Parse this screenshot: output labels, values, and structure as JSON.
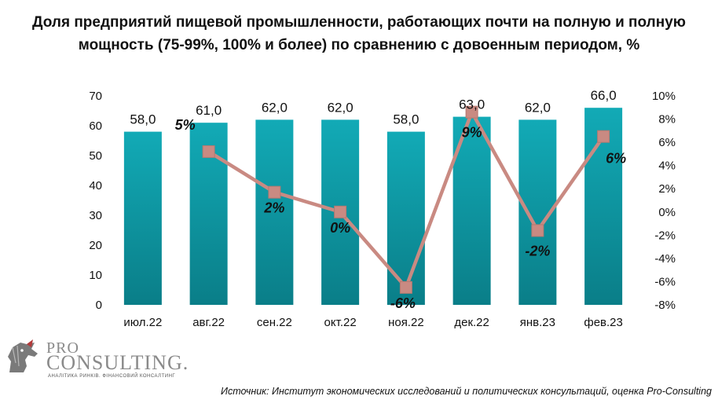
{
  "title": "Доля предприятий пищевой промышленности, работающих почти на полную и полную мощность (75-99%, 100% и более) по сравнению с довоенным периодом, %",
  "source": "Источник: Институт экономических исследований и политических консультаций, оценка Pro-Consulting",
  "logo": {
    "line1": "PRO",
    "line2": "CONSULTING.",
    "subtitle": "АНАЛІТИКА РИНКІВ. ФІНАНСОВИЙ КОНСАЛТИНГ"
  },
  "colors": {
    "bar": "#0e9aa7",
    "bar_dark": "#0b7f8a",
    "line": "#c98a82",
    "marker": "#c98a82",
    "text": "#111111"
  },
  "chart_data": {
    "type": "bar",
    "categories": [
      "июл.22",
      "авг.22",
      "сен.22",
      "окт.22",
      "ноя.22",
      "дек.22",
      "янв.23",
      "фев.23"
    ],
    "series": [
      {
        "type": "bar",
        "axis": "left",
        "values": [
          58.0,
          61.0,
          62.0,
          62.0,
          58.0,
          63.0,
          62.0,
          66.0
        ],
        "labels": [
          "58,0",
          "61,0",
          "62,0",
          "62,0",
          "58,0",
          "63,0",
          "62,0",
          "66,0"
        ]
      },
      {
        "type": "line",
        "axis": "right",
        "values": [
          null,
          5.2,
          1.7,
          0.0,
          -6.5,
          8.6,
          -1.6,
          6.5
        ],
        "labels": [
          "",
          "5%",
          "2%",
          "0%",
          "-6%",
          "9%",
          "-2%",
          "6%"
        ]
      }
    ],
    "y_left": {
      "ylim": [
        0,
        70
      ],
      "ticks": [
        "0",
        "10",
        "20",
        "30",
        "40",
        "50",
        "60",
        "70"
      ]
    },
    "y_right": {
      "ylim": [
        -8,
        10
      ],
      "ticks": [
        "-8%",
        "-6%",
        "-4%",
        "-2%",
        "0%",
        "2%",
        "4%",
        "6%",
        "8%",
        "10%"
      ]
    },
    "grid": false,
    "legend": "none"
  }
}
